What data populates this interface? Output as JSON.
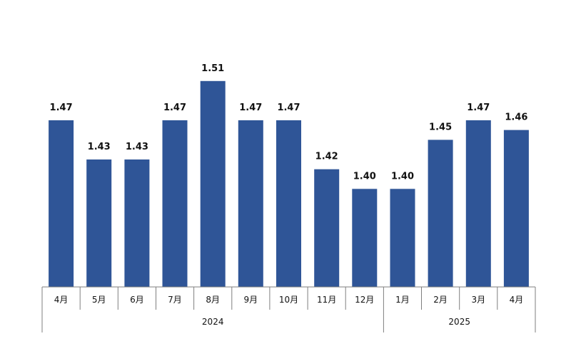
{
  "chart_data": {
    "type": "bar",
    "categories": [
      "4月",
      "5月",
      "6月",
      "7月",
      "8月",
      "9月",
      "10月",
      "11月",
      "12月",
      "1月",
      "2月",
      "3月",
      "4月"
    ],
    "values": [
      1.47,
      1.43,
      1.43,
      1.47,
      1.51,
      1.47,
      1.47,
      1.42,
      1.4,
      1.4,
      1.45,
      1.47,
      1.46
    ],
    "value_labels": [
      "1.47",
      "1.43",
      "1.43",
      "1.47",
      "1.51",
      "1.47",
      "1.47",
      "1.42",
      "1.40",
      "1.40",
      "1.45",
      "1.47",
      "1.46"
    ],
    "year_groups": [
      {
        "label": "2024",
        "start": 0,
        "end": 8
      },
      {
        "label": "2025",
        "start": 9,
        "end": 12
      }
    ],
    "title": "",
    "xlabel": "",
    "ylabel": "",
    "ylim": [
      1.3,
      1.52
    ],
    "grid": false,
    "legend": "none",
    "bar_color": "#2f5597",
    "axis_color": "#7f7f7f"
  }
}
